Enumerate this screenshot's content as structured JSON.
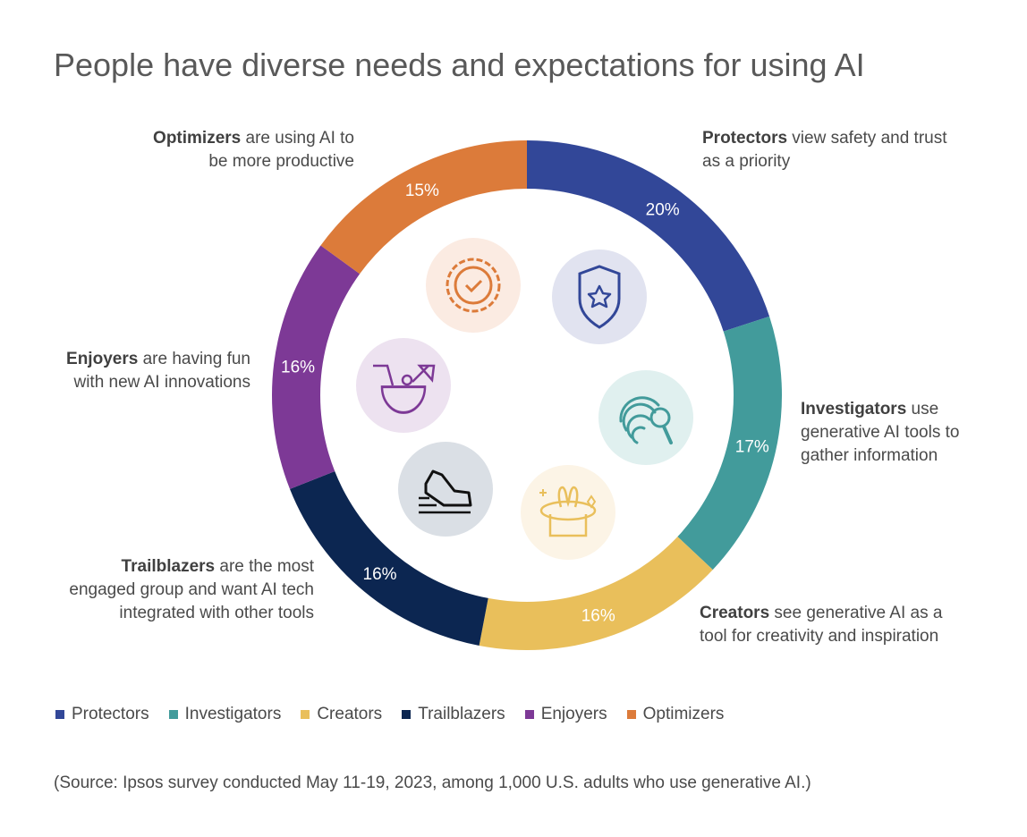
{
  "chart_data": {
    "type": "pie",
    "donut": true,
    "title": "People have diverse needs and expectations for using AI",
    "legend_position": "bottom",
    "slices": [
      {
        "name": "Protectors",
        "value": 20,
        "label": "20%",
        "color": "#324798",
        "desc": "view safety and trust as a priority",
        "icon": "shield-star-icon",
        "icon_bg": "#e1e3f0"
      },
      {
        "name": "Investigators",
        "value": 17,
        "label": "17%",
        "color": "#429b9b",
        "desc": "use generative AI tools to gather information",
        "icon": "fingerprint-search-icon",
        "icon_bg": "#e0f0ef"
      },
      {
        "name": "Creators",
        "value": 16,
        "label": "16%",
        "color": "#e9bf5b",
        "desc": "see generative AI as a tool for creativity and inspiration",
        "icon": "magic-hat-rabbit-icon",
        "icon_bg": "#fcf4e6"
      },
      {
        "name": "Trailblazers",
        "value": 16,
        "label": "16%",
        "color": "#0c2651",
        "desc": "are the most engaged group and want AI tech integrated with other tools",
        "icon": "running-shoe-icon",
        "icon_bg": "#dadfe5"
      },
      {
        "name": "Enjoyers",
        "value": 16,
        "label": "16%",
        "color": "#7d3996",
        "desc": "are having fun with new AI innovations",
        "icon": "coconut-drink-icon",
        "icon_bg": "#ede2f0"
      },
      {
        "name": "Optimizers",
        "value": 15,
        "label": "15%",
        "color": "#dc7b3a",
        "desc": "are using AI to be more productive",
        "icon": "badge-check-icon",
        "icon_bg": "#fbebe2"
      }
    ]
  },
  "annotations": {
    "protectors": {
      "name": "Protectors",
      "line1": " view safety and trust",
      "line2": "as a priority"
    },
    "investigators": {
      "name": "Investigators",
      "line1": " use",
      "line2": "generative AI tools to",
      "line3": "gather information"
    },
    "creators": {
      "name": "Creators",
      "line1": " see generative AI as a",
      "line2": "tool for creativity and inspiration"
    },
    "trailblazers": {
      "name": "Trailblazers",
      "line1": " are the most",
      "line2": "engaged group and want AI tech",
      "line3": "integrated with other tools"
    },
    "enjoyers": {
      "name": "Enjoyers",
      "line1": " are having fun",
      "line2": "with new AI innovations"
    },
    "optimizers": {
      "name": "Optimizers",
      "line1": " are using AI to",
      "line2": "be more productive"
    }
  },
  "source": "(Source: Ipsos survey conducted May 11-19, 2023, among 1,000 U.S. adults who use generative AI.)"
}
